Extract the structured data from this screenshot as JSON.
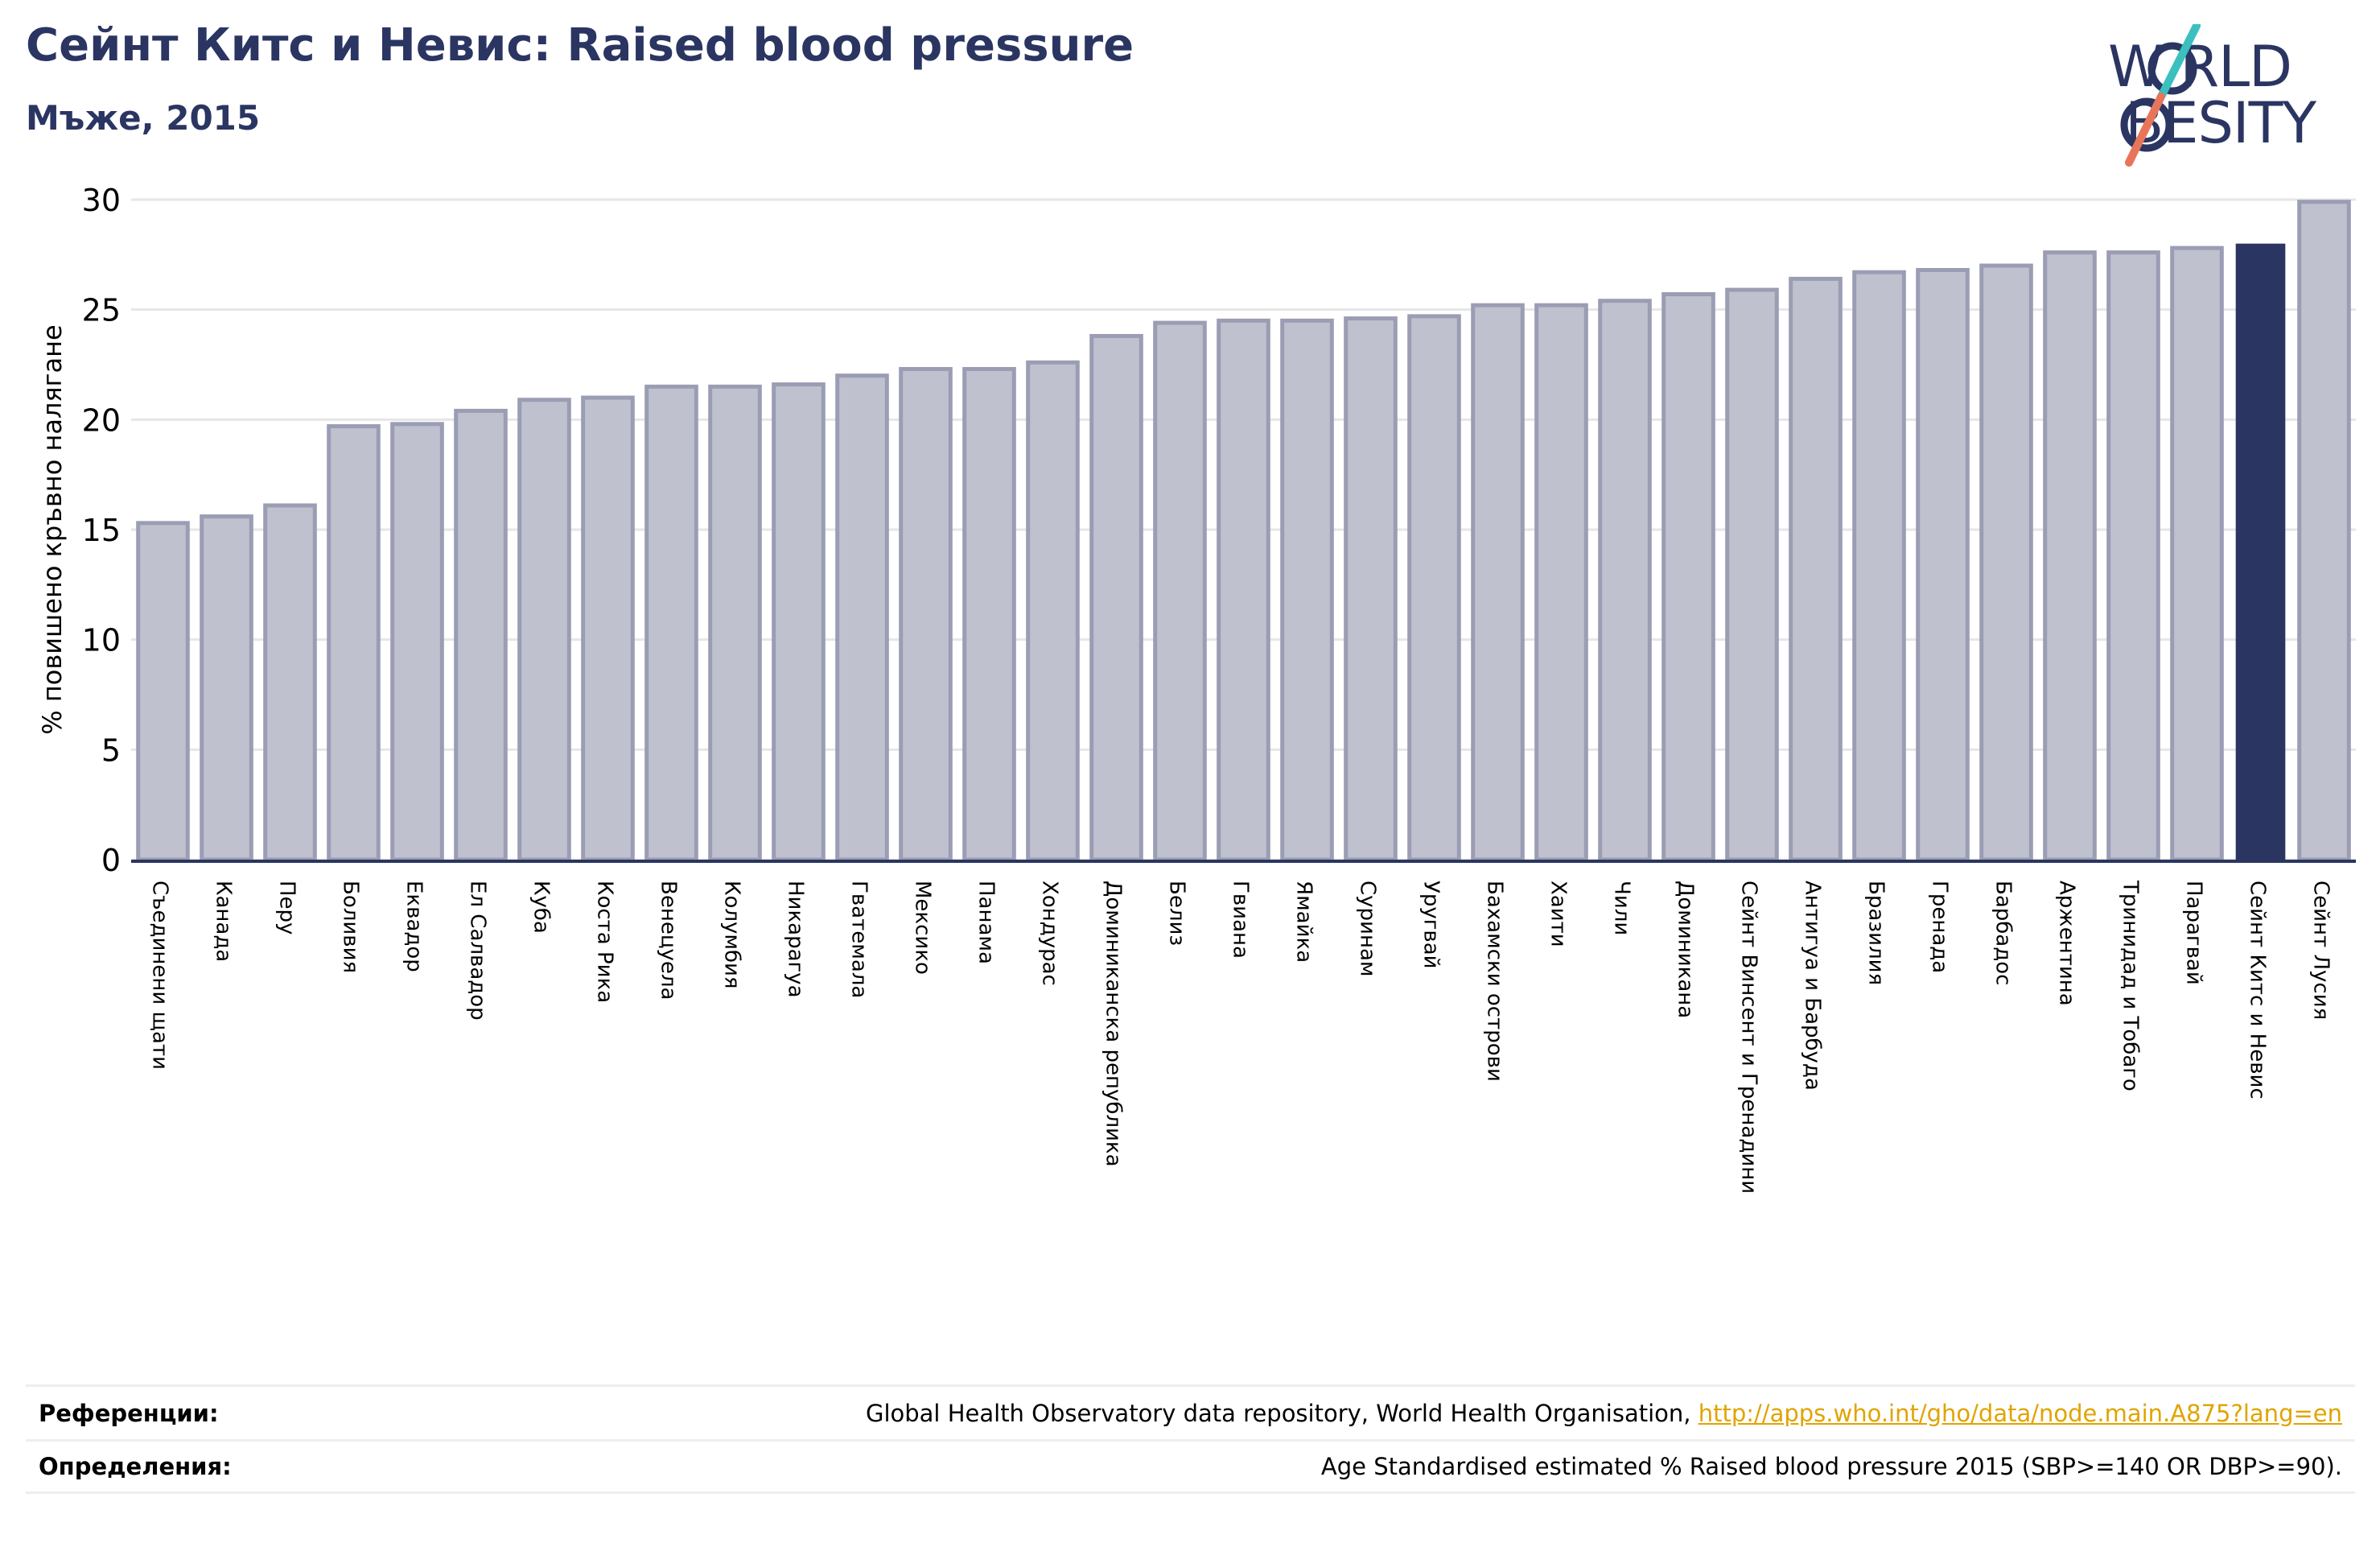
{
  "header": {
    "title": "Сейнт Китс и Невис: Raised blood pressure",
    "subtitle": "Мъже, 2015"
  },
  "logo": {
    "line1": "W RLD",
    "line2": " BESITY",
    "icon": "world-obesity-logo"
  },
  "colors": {
    "bar": "#bfc1cf",
    "bar_border": "#9a9db3",
    "highlight": "#2b3562",
    "title": "#2b3562",
    "link": "#e0a400",
    "logo_teal": "#3bbfbf",
    "logo_orange": "#e8755a"
  },
  "chart_data": {
    "type": "bar",
    "title": "Сейнт Китс и Невис: Raised blood pressure",
    "subtitle": "Мъже, 2015",
    "xlabel": "",
    "ylabel": "% повишено кръвно налягане",
    "ylim": [
      0,
      30
    ],
    "yticks": [
      0,
      5,
      10,
      15,
      20,
      25,
      30
    ],
    "grid": true,
    "legend": "none",
    "highlight": "Сейнт Китс и Невис",
    "categories": [
      "Съединени щати",
      "Канада",
      "Перу",
      "Боливия",
      "Еквадор",
      "Ел Салвадор",
      "Куба",
      "Коста Рика",
      "Венецуела",
      "Колумбия",
      "Никарагуа",
      "Гватемала",
      "Мексико",
      "Панама",
      "Хондурас",
      "Доминиканска република",
      "Белиз",
      "Гвиана",
      "Ямайка",
      "Суринам",
      "Уругвай",
      "Бахамски острови",
      "Хаити",
      "Чили",
      "Доминикана",
      "Сейнт Винсент и Гренадини",
      "Антигуа и Барбуда",
      "Бразилия",
      "Гренада",
      "Барбадос",
      "Аржентина",
      "Тринидад и Тобаго",
      "Парагвай",
      "Сейнт Китс и Невис",
      "Сейнт Лусия"
    ],
    "values": [
      15.3,
      15.6,
      16.1,
      19.7,
      19.8,
      20.4,
      20.9,
      21.0,
      21.5,
      21.5,
      21.6,
      22.0,
      22.3,
      22.3,
      22.6,
      23.8,
      24.4,
      24.5,
      24.5,
      24.6,
      24.7,
      25.2,
      25.2,
      25.4,
      25.7,
      25.9,
      26.4,
      26.7,
      26.8,
      27.0,
      27.6,
      27.6,
      27.8,
      28.0,
      29.9
    ]
  },
  "references": {
    "refs_label": "Референции:",
    "refs_text": "Global Health Observatory data repository, World Health Organisation, ",
    "refs_link": "http://apps.who.int/gho/data/node.main.A875?lang=en",
    "defs_label": "Определения:",
    "defs_text": "Age Standardised estimated % Raised blood pressure 2015 (SBP>=140 OR DBP>=90)."
  }
}
